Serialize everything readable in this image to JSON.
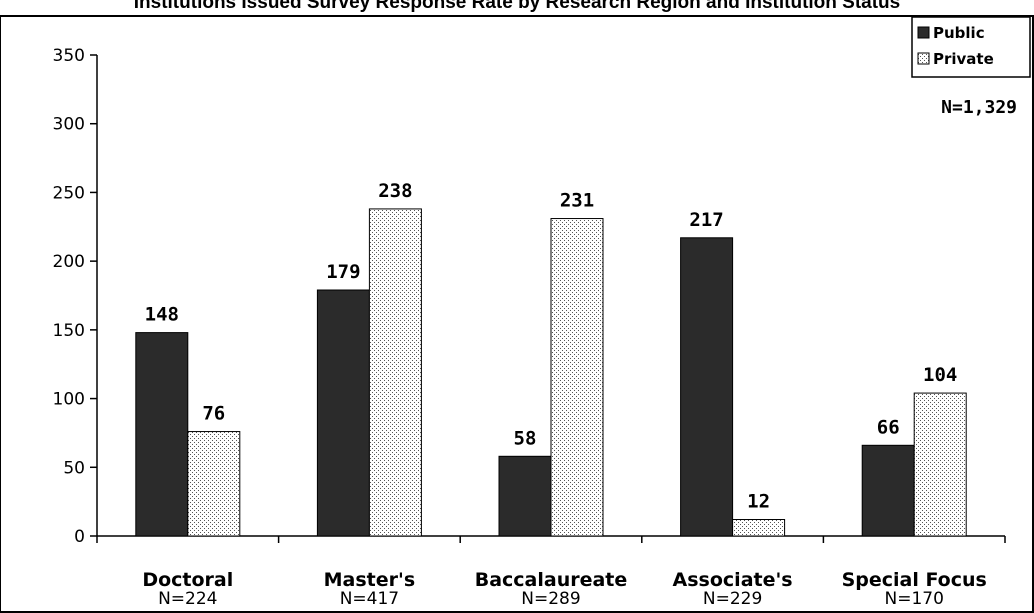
{
  "header_fragment": "Institutions Issued Survey Response Rate by Research Region and Institution Status",
  "colors": {
    "public": "#2b2b2b",
    "private_bg": "#ffffff",
    "private_dot": "#555555"
  },
  "chart_data": {
    "type": "bar",
    "categories": [
      "Doctoral",
      "Master's",
      "Baccalaureate",
      "Associate's",
      "Special Focus"
    ],
    "category_n": [
      "N=224",
      "N=417",
      "N=289",
      "N=229",
      "N=170"
    ],
    "series": [
      {
        "name": "Public",
        "values": [
          148,
          179,
          58,
          217,
          66
        ]
      },
      {
        "name": "Private",
        "values": [
          76,
          238,
          231,
          12,
          104
        ]
      }
    ],
    "ylim": [
      0,
      350
    ],
    "yticks": [
      0,
      50,
      100,
      150,
      200,
      250,
      300,
      350
    ],
    "total_label": "N=1,329",
    "legend": {
      "position": "top-right",
      "entries": [
        "Public",
        "Private"
      ]
    },
    "grid": false
  }
}
